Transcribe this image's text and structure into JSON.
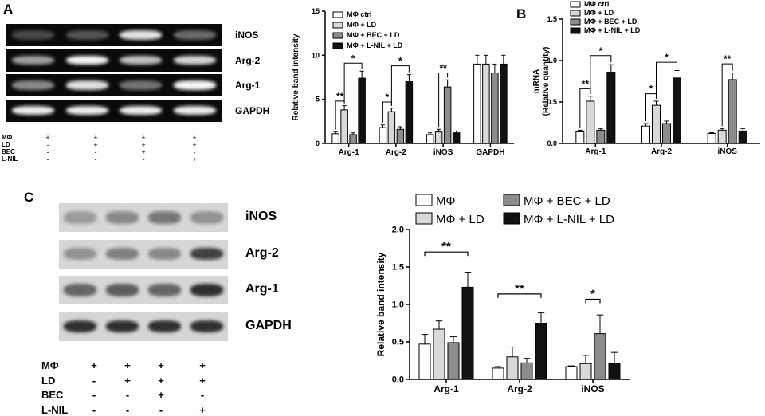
{
  "panels": {
    "A": {
      "label": "A",
      "blot_rows": [
        "iNOS",
        "Arg-2",
        "Arg-1",
        "GAPDH"
      ],
      "blot_intensities": [
        [
          0.15,
          0.2,
          0.85,
          0.3
        ],
        [
          0.55,
          0.95,
          0.7,
          0.8
        ],
        [
          0.45,
          0.85,
          0.35,
          0.95
        ],
        [
          0.9,
          0.9,
          0.9,
          0.9
        ]
      ],
      "treatment_rows": [
        {
          "label": "MΦ",
          "values": [
            "+",
            "+",
            "+",
            "+"
          ]
        },
        {
          "label": "LD",
          "values": [
            "-",
            "+",
            "+",
            "+"
          ]
        },
        {
          "label": "BEC",
          "values": [
            "-",
            "-",
            "+",
            "-"
          ]
        },
        {
          "label": "L-NIL",
          "values": [
            "-",
            "-",
            "-",
            "+"
          ]
        }
      ]
    },
    "B": {
      "label": "B"
    },
    "C": {
      "label": "C",
      "blot_rows": [
        "iNOS",
        "Arg-2",
        "Arg-1",
        "GAPDH"
      ],
      "blot_intensities": [
        [
          0.25,
          0.35,
          0.45,
          0.3
        ],
        [
          0.3,
          0.4,
          0.35,
          0.75
        ],
        [
          0.55,
          0.6,
          0.55,
          0.85
        ],
        [
          0.85,
          0.85,
          0.85,
          0.85
        ]
      ],
      "treatment_rows": [
        {
          "label": "MΦ",
          "values": [
            "+",
            "+",
            "+",
            "+"
          ]
        },
        {
          "label": "LD",
          "values": [
            "-",
            "+",
            "+",
            "+"
          ]
        },
        {
          "label": "BEC",
          "values": [
            "-",
            "-",
            "+",
            "-"
          ]
        },
        {
          "label": "L-NIL",
          "values": [
            "-",
            "-",
            "-",
            "+"
          ]
        }
      ]
    }
  },
  "colors": {
    "s1": "#ffffff",
    "s2": "#d9d9d9",
    "s3": "#8c8c8c",
    "s4": "#111111"
  },
  "chart_data": [
    {
      "id": "A-bar",
      "type": "bar",
      "ylabel": "Relative band intensity",
      "ylim": [
        0,
        15
      ],
      "yticks": [
        "0",
        "5",
        "10",
        "15"
      ],
      "categories": [
        "Arg-1",
        "Arg-2",
        "iNOS",
        "GAPDH"
      ],
      "legend_position": "top-left",
      "series": [
        {
          "name": "MΦ ctrl",
          "values": [
            1.1,
            1.8,
            1.0,
            9.0
          ],
          "errors": [
            0.2,
            0.3,
            0.2,
            1.0
          ]
        },
        {
          "name": "MΦ + LD",
          "values": [
            3.8,
            3.6,
            1.3,
            9.0
          ],
          "errors": [
            0.5,
            0.4,
            0.3,
            1.0
          ]
        },
        {
          "name": "MΦ + BEC + LD",
          "values": [
            1.0,
            1.6,
            6.4,
            8.0
          ],
          "errors": [
            0.2,
            0.3,
            0.8,
            1.0
          ]
        },
        {
          "name": "MΦ + L-NIL + LD",
          "values": [
            7.4,
            7.0,
            1.2,
            9.0
          ],
          "errors": [
            0.8,
            0.8,
            0.2,
            1.0
          ]
        }
      ],
      "annotations": [
        {
          "text": "**",
          "group": 0,
          "from": 0,
          "to": 1,
          "level": 4.8
        },
        {
          "text": "*",
          "group": 0,
          "from": 1,
          "to": 3,
          "level": 9.1
        },
        {
          "text": "*",
          "group": 1,
          "from": 0,
          "to": 1,
          "level": 4.7
        },
        {
          "text": "*",
          "group": 1,
          "from": 1,
          "to": 3,
          "level": 8.8
        },
        {
          "text": "**",
          "group": 2,
          "from": 1,
          "to": 2,
          "level": 8.0
        }
      ]
    },
    {
      "id": "B-bar",
      "type": "bar",
      "ylabel": "mRNA\n(Relative quantity)",
      "ylim": [
        0,
        1.5
      ],
      "yticks": [
        "0.0",
        "0.5",
        "1.0",
        "1.5"
      ],
      "categories": [
        "Arg-1",
        "Arg-2",
        "iNOS"
      ],
      "legend_position": "top-left",
      "series": [
        {
          "name": "MΦ ctrl",
          "values": [
            0.14,
            0.21,
            0.12
          ],
          "errors": [
            0.02,
            0.03,
            0.01
          ]
        },
        {
          "name": "MΦ + LD",
          "values": [
            0.51,
            0.46,
            0.16
          ],
          "errors": [
            0.06,
            0.05,
            0.02
          ]
        },
        {
          "name": "MΦ + BEC + LD",
          "values": [
            0.16,
            0.24,
            0.77
          ],
          "errors": [
            0.02,
            0.03,
            0.08
          ]
        },
        {
          "name": "MΦ + L-NIL + LD",
          "values": [
            0.86,
            0.79,
            0.15
          ],
          "errors": [
            0.09,
            0.09,
            0.03
          ]
        }
      ],
      "annotations": [
        {
          "text": "**",
          "group": 0,
          "from": 0,
          "to": 1,
          "level": 0.66
        },
        {
          "text": "*",
          "group": 0,
          "from": 1,
          "to": 3,
          "level": 1.06
        },
        {
          "text": "*",
          "group": 1,
          "from": 0,
          "to": 1,
          "level": 0.6
        },
        {
          "text": "*",
          "group": 1,
          "from": 1,
          "to": 3,
          "level": 0.98
        },
        {
          "text": "**",
          "group": 2,
          "from": 1,
          "to": 2,
          "level": 0.96
        }
      ]
    },
    {
      "id": "C-bar",
      "type": "bar",
      "ylabel": "Relative band intensity",
      "ylim": [
        0,
        2.0
      ],
      "yticks": [
        "0.0",
        "0.5",
        "1.0",
        "1.5",
        "2.0"
      ],
      "categories": [
        "Arg-1",
        "Arg-2",
        "iNOS"
      ],
      "legend_position": "top",
      "series": [
        {
          "name": "MΦ",
          "values": [
            0.47,
            0.15,
            0.17
          ],
          "errors": [
            0.13,
            0.02,
            0.01
          ]
        },
        {
          "name": "MΦ + LD",
          "values": [
            0.67,
            0.3,
            0.21
          ],
          "errors": [
            0.11,
            0.13,
            0.11
          ]
        },
        {
          "name": "MΦ + BEC + LD",
          "values": [
            0.49,
            0.22,
            0.61
          ],
          "errors": [
            0.08,
            0.06,
            0.25
          ]
        },
        {
          "name": "MΦ + L-NIL + LD",
          "values": [
            1.23,
            0.75,
            0.21
          ],
          "errors": [
            0.2,
            0.14,
            0.15
          ]
        }
      ],
      "annotations": [
        {
          "text": "**",
          "group": 0,
          "from": 0,
          "to": 3,
          "level": 1.7
        },
        {
          "text": "**",
          "group": 1,
          "from": 0,
          "to": 3,
          "level": 1.14
        },
        {
          "text": "*",
          "group": 2,
          "from": 1,
          "to": 2,
          "level": 1.07
        }
      ]
    }
  ]
}
